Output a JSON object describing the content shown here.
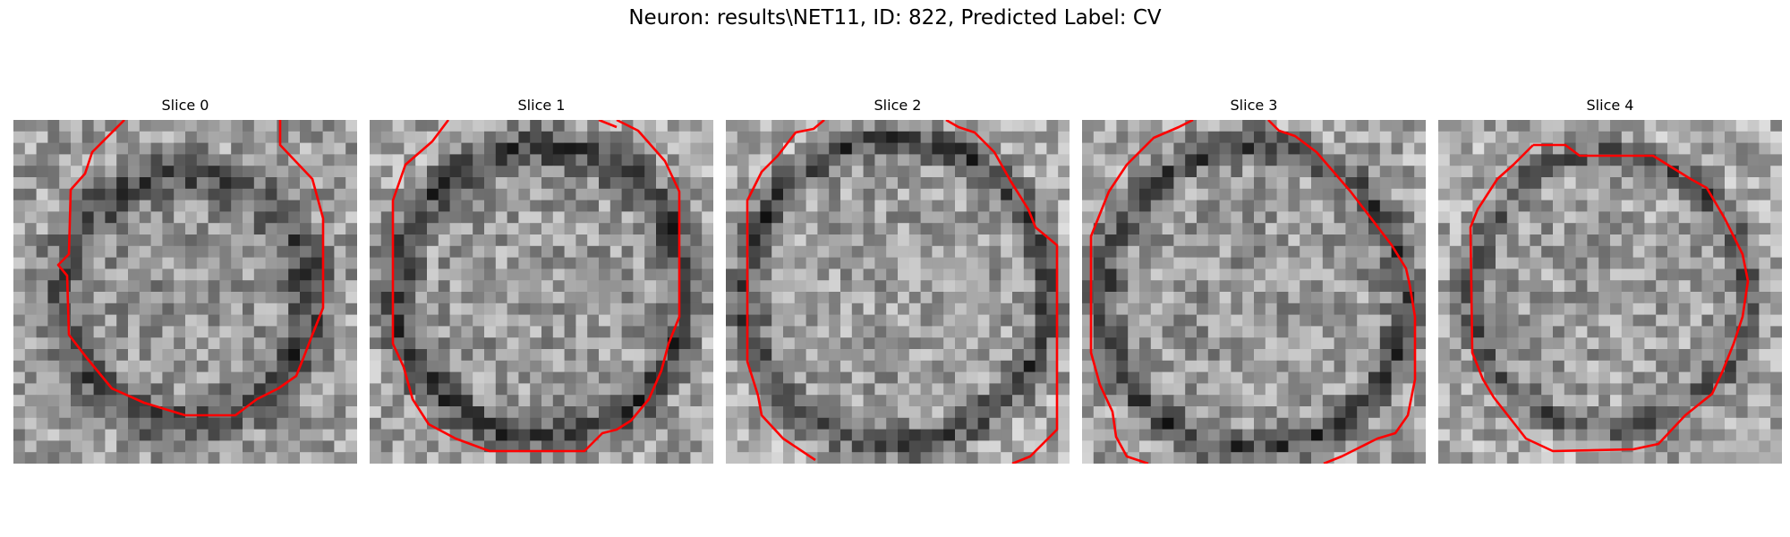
{
  "figure": {
    "title": "Neuron: results\\NET11, ID: 822, Predicted Label: CV"
  },
  "colors": {
    "contour": "#ff0000",
    "background": "#ffffff"
  },
  "panels": [
    {
      "title": "Slice 0"
    },
    {
      "title": "Slice 1"
    },
    {
      "title": "Slice 2"
    },
    {
      "title": "Slice 3"
    },
    {
      "title": "Slice 4"
    }
  ]
}
